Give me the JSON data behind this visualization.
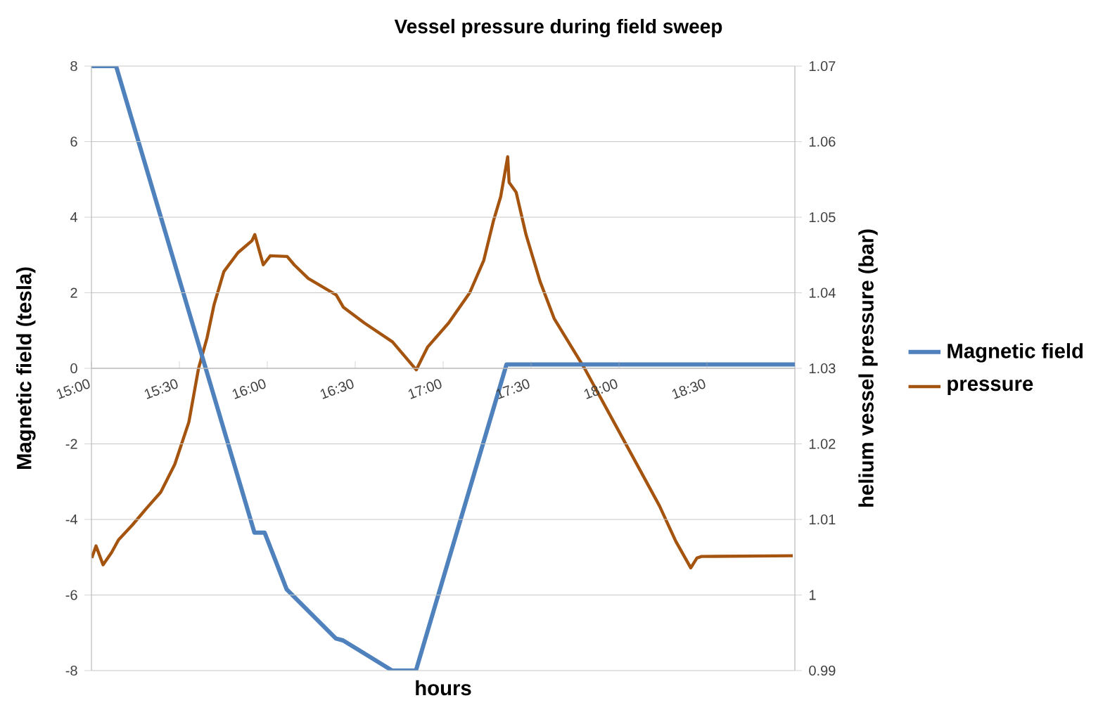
{
  "chart_data": {
    "type": "line",
    "title": "Vessel pressure during field sweep",
    "xlabel": "hours",
    "ylabel": "Magnetic field (tesla)",
    "y2label": "helium vessel pressure (bar)",
    "xlim": [
      15,
      19
    ],
    "xticks": [
      {
        "value": 15,
        "label": "15:00"
      },
      {
        "value": 15.5,
        "label": "15:30"
      },
      {
        "value": 16,
        "label": "16:00"
      },
      {
        "value": 16.5,
        "label": "16:30"
      },
      {
        "value": 17,
        "label": "17:00"
      },
      {
        "value": 17.5,
        "label": "17:30"
      },
      {
        "value": 18,
        "label": "18:00"
      },
      {
        "value": 18.5,
        "label": "18:30"
      }
    ],
    "ylim": [
      -8,
      8
    ],
    "yticks": [
      -8,
      -6,
      -4,
      -2,
      0,
      2,
      4,
      6,
      8
    ],
    "y2lim": [
      0.99,
      1.07
    ],
    "y2ticks": [
      0.99,
      1,
      1.01,
      1.02,
      1.03,
      1.04,
      1.05,
      1.06,
      1.07
    ],
    "grid": "y",
    "legend": "right",
    "series": [
      {
        "name": "Magnetic field",
        "color": "#4f81bd",
        "x": [
          15.0,
          15.14,
          15.927,
          15.985,
          16.11,
          16.39,
          16.43,
          16.71,
          16.845,
          17.36,
          19.0
        ],
        "values": [
          8,
          8,
          -4.35,
          -4.35,
          -5.85,
          -7.15,
          -7.2,
          -8,
          -8,
          0.1,
          0.1
        ]
      },
      {
        "name": "pressure",
        "color": "#a5540f",
        "axis": "y2",
        "x": [
          15.002,
          15.026,
          15.066,
          15.114,
          15.154,
          15.234,
          15.314,
          15.394,
          15.474,
          15.554,
          15.609,
          15.657,
          15.697,
          15.753,
          15.833,
          15.913,
          15.929,
          15.977,
          16.017,
          16.113,
          16.153,
          16.233,
          16.392,
          16.432,
          16.552,
          16.712,
          16.847,
          16.911,
          17.031,
          17.151,
          17.231,
          17.287,
          17.327,
          17.367,
          17.375,
          17.415,
          17.471,
          17.551,
          17.631,
          17.804,
          18.043,
          18.23,
          18.323,
          18.408,
          18.443,
          18.469,
          18.988
        ],
        "values": [
          1.0049,
          1.0065,
          1.004,
          1.0056,
          1.0073,
          1.0093,
          1.0115,
          1.0136,
          1.0173,
          1.0229,
          1.03,
          1.034,
          1.0384,
          1.0428,
          1.0453,
          1.0469,
          1.0477,
          1.0437,
          1.0449,
          1.0448,
          1.0437,
          1.0419,
          1.0397,
          1.0381,
          1.036,
          1.0335,
          1.0298,
          1.0328,
          1.036,
          1.04,
          1.0443,
          1.0496,
          1.0527,
          1.058,
          1.0546,
          1.0533,
          1.0477,
          1.0415,
          1.0366,
          1.03,
          1.0198,
          1.0118,
          1.0071,
          1.0036,
          1.0049,
          1.0051,
          1.0052
        ]
      }
    ]
  }
}
